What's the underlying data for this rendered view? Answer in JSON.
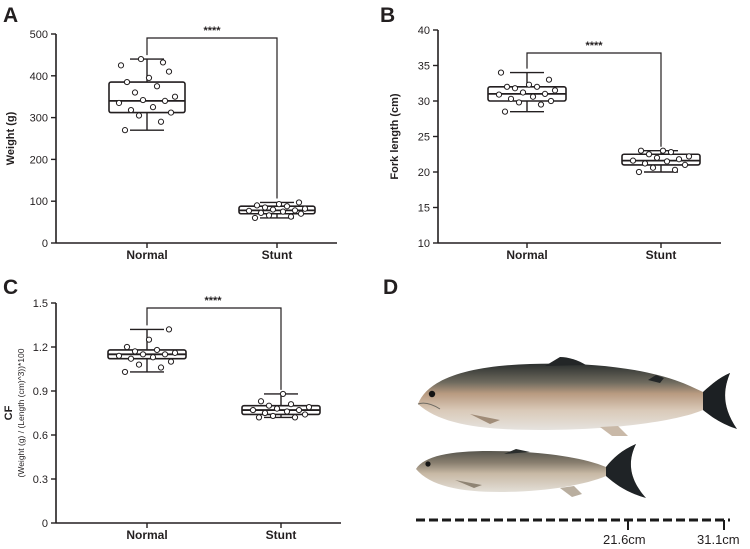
{
  "chart_data": [
    {
      "panel": "A",
      "type": "box",
      "categories": [
        "Normal",
        "Stunt"
      ],
      "ylabel": "Weight (g)",
      "ylim": [
        0,
        500
      ],
      "yticks": [
        0,
        100,
        200,
        300,
        400,
        500
      ],
      "grid": false,
      "significance": "****",
      "series": [
        {
          "category": "Normal",
          "min": 270,
          "q1": 312,
          "median": 340,
          "q3": 385,
          "max": 440,
          "points": [
            270,
            290,
            305,
            312,
            318,
            325,
            335,
            340,
            342,
            350,
            360,
            375,
            385,
            395,
            410,
            425,
            432,
            440
          ]
        },
        {
          "category": "Stunt",
          "min": 60,
          "q1": 70,
          "median": 78,
          "q3": 88,
          "max": 97,
          "points": [
            60,
            63,
            66,
            70,
            72,
            75,
            77,
            78,
            80,
            82,
            85,
            88,
            90,
            93,
            97
          ]
        }
      ]
    },
    {
      "panel": "B",
      "type": "box",
      "categories": [
        "Normal",
        "Stunt"
      ],
      "ylabel": "Fork length (cm)",
      "ylim": [
        10,
        40
      ],
      "yticks": [
        10,
        15,
        20,
        25,
        30,
        35,
        40
      ],
      "grid": false,
      "significance": "****",
      "series": [
        {
          "category": "Normal",
          "min": 28.5,
          "q1": 30.0,
          "median": 31.0,
          "q3": 32.0,
          "max": 34.0,
          "points": [
            28.5,
            29.5,
            29.8,
            30.0,
            30.3,
            30.6,
            30.9,
            31.0,
            31.2,
            31.5,
            31.8,
            32.0,
            32.0,
            32.3,
            33.0,
            34.0
          ]
        },
        {
          "category": "Stunt",
          "min": 20.0,
          "q1": 21.0,
          "median": 21.6,
          "q3": 22.5,
          "max": 23.0,
          "points": [
            20.0,
            20.3,
            20.6,
            21.0,
            21.2,
            21.5,
            21.6,
            21.8,
            22.0,
            22.2,
            22.5,
            22.8,
            23.0,
            23.0
          ]
        }
      ]
    },
    {
      "panel": "C",
      "type": "box",
      "categories": [
        "Normal",
        "Stunt"
      ],
      "ylabel": "CF",
      "ylabel_sub": "(Weight (g) / (Length (cm)^3))*100",
      "ylim": [
        0,
        1.5
      ],
      "yticks": [
        "0",
        "0.3",
        "0.6",
        "0.9",
        "1.2",
        "1.5"
      ],
      "grid": false,
      "significance": "****",
      "series": [
        {
          "category": "Normal",
          "min": 1.03,
          "q1": 1.12,
          "median": 1.15,
          "q3": 1.18,
          "max": 1.32,
          "points": [
            1.03,
            1.06,
            1.08,
            1.1,
            1.12,
            1.13,
            1.14,
            1.15,
            1.15,
            1.16,
            1.17,
            1.18,
            1.2,
            1.25,
            1.32
          ]
        },
        {
          "category": "Stunt",
          "min": 0.72,
          "q1": 0.74,
          "median": 0.77,
          "q3": 0.8,
          "max": 0.88,
          "points": [
            0.72,
            0.72,
            0.73,
            0.74,
            0.75,
            0.76,
            0.77,
            0.77,
            0.78,
            0.79,
            0.8,
            0.81,
            0.83,
            0.88
          ]
        }
      ]
    }
  ],
  "panel_d": {
    "letter": "D",
    "scale_labels": [
      "21.6cm",
      "31.1cm"
    ],
    "fish_colors": {
      "back": "#2b2f2e",
      "side": "#b89a80",
      "belly": "#e6e3df",
      "fin": "#1c2023"
    }
  },
  "panel_letters": [
    "A",
    "B",
    "C",
    "D"
  ]
}
